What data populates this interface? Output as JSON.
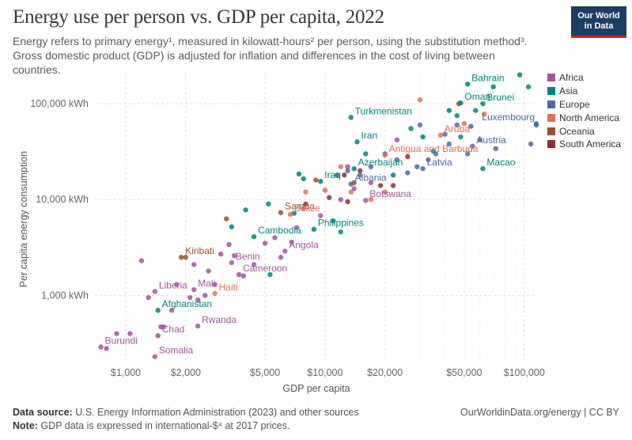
{
  "header": {
    "title": "Energy use per person vs. GDP per capita, 2022",
    "subtitle": "Energy refers to primary energy¹, measured in kilowatt-hours² per person, using the substitution method³. Gross domestic product (GDP) is adjusted for inflation and differences in the cost of living between countries.",
    "logo_line1": "Our World",
    "logo_line2": "in Data"
  },
  "footer": {
    "source_label": "Data source:",
    "source_text": "U.S. Energy Information Administration (2023) and other sources",
    "note_label": "Note:",
    "note_text": "GDP data is expressed in international-$⁴ at 2017 prices.",
    "credit": "OurWorldinData.org/energy | CC BY"
  },
  "colors": {
    "Africa": "#a2559c",
    "Asia": "#00847e",
    "Europe": "#4c6a9c",
    "North America": "#e56e5a",
    "Oceania": "#9a5129",
    "South America": "#883039",
    "grid": "#dddddd",
    "axis": "#666666"
  },
  "chart_data": {
    "type": "scatter",
    "title": "Energy use per person vs. GDP per capita, 2022",
    "xlabel": "GDP per capita",
    "ylabel": "Per capita energy consumption",
    "x_scale": "log",
    "y_scale": "log",
    "xlim": [
      700,
      115000
    ],
    "ylim": [
      200,
      210000
    ],
    "x_ticks": [
      1000,
      2000,
      5000,
      10000,
      20000,
      50000,
      100000
    ],
    "x_tick_labels": [
      "$1,000",
      "$2,000",
      "$5,000",
      "$10,000",
      "$20,000",
      "$50,000",
      "$100,000"
    ],
    "y_ticks": [
      1000,
      10000,
      100000
    ],
    "y_tick_labels": [
      "1,000 kWh",
      "10,000 kWh",
      "100,000 kWh"
    ],
    "grid": true,
    "legend_position": "right",
    "regions": [
      "Africa",
      "Asia",
      "Europe",
      "North America",
      "Oceania",
      "South America"
    ],
    "labeled_points": [
      {
        "label": "Bahrain",
        "region": "Asia",
        "x": 52000,
        "y": 160000
      },
      {
        "label": "Oman",
        "region": "Asia",
        "x": 48000,
        "y": 102000
      },
      {
        "label": "Brunei",
        "region": "Asia",
        "x": 62000,
        "y": 100000
      },
      {
        "label": "Turkmenistan",
        "region": "Asia",
        "x": 13500,
        "y": 72000
      },
      {
        "label": "Luxembourg",
        "region": "Europe",
        "x": 115000,
        "y": 62000
      },
      {
        "label": "Iran",
        "region": "Asia",
        "x": 14500,
        "y": 40000
      },
      {
        "label": "Aruba",
        "region": "North America",
        "x": 38000,
        "y": 47000
      },
      {
        "label": "Austria",
        "region": "Europe",
        "x": 55000,
        "y": 36000
      },
      {
        "label": "Antigua and Barbuda",
        "region": "North America",
        "x": 20000,
        "y": 29000
      },
      {
        "label": "Azerbaijan",
        "region": "Asia",
        "x": 14000,
        "y": 21000
      },
      {
        "label": "Latvia",
        "region": "Europe",
        "x": 31000,
        "y": 21000
      },
      {
        "label": "Macao",
        "region": "Asia",
        "x": 62000,
        "y": 21000
      },
      {
        "label": "Iraq",
        "region": "Asia",
        "x": 9500,
        "y": 15500
      },
      {
        "label": "Albania",
        "region": "Europe",
        "x": 13500,
        "y": 14500
      },
      {
        "label": "Botswana",
        "region": "Africa",
        "x": 16000,
        "y": 9800
      },
      {
        "label": "Samoa",
        "region": "Oceania",
        "x": 6000,
        "y": 7300
      },
      {
        "label": "Belize",
        "region": "North America",
        "x": 6700,
        "y": 7000
      },
      {
        "label": "Philippines",
        "region": "Asia",
        "x": 8800,
        "y": 4900
      },
      {
        "label": "Cambodia",
        "region": "Asia",
        "x": 4400,
        "y": 4100
      },
      {
        "label": "Angola",
        "region": "Africa",
        "x": 6300,
        "y": 2900
      },
      {
        "label": "Kiribati",
        "region": "Oceania",
        "x": 1900,
        "y": 2500
      },
      {
        "label": "Benin",
        "region": "Africa",
        "x": 3400,
        "y": 2200
      },
      {
        "label": "Cameroon",
        "region": "Africa",
        "x": 3700,
        "y": 1650
      },
      {
        "label": "Liberia",
        "region": "Africa",
        "x": 1400,
        "y": 1100
      },
      {
        "label": "Mali",
        "region": "Africa",
        "x": 2200,
        "y": 1150
      },
      {
        "label": "Haiti",
        "region": "North America",
        "x": 2800,
        "y": 1050
      },
      {
        "label": "Afghanistan",
        "region": "Asia",
        "x": 1450,
        "y": 700
      },
      {
        "label": "Rwanda",
        "region": "Africa",
        "x": 2300,
        "y": 480
      },
      {
        "label": "Chad",
        "region": "Africa",
        "x": 1450,
        "y": 380
      },
      {
        "label": "Burundi",
        "region": "Africa",
        "x": 750,
        "y": 290
      },
      {
        "label": "Somalia",
        "region": "Africa",
        "x": 1400,
        "y": 230
      }
    ],
    "points": [
      {
        "region": "Asia",
        "x": 95000,
        "y": 200000
      },
      {
        "region": "Asia",
        "x": 70000,
        "y": 150000
      },
      {
        "region": "Asia",
        "x": 105000,
        "y": 150000
      },
      {
        "region": "Asia",
        "x": 57000,
        "y": 85000
      },
      {
        "region": "Asia",
        "x": 46000,
        "y": 75000
      },
      {
        "region": "Asia",
        "x": 115000,
        "y": 60000
      },
      {
        "region": "Asia",
        "x": 27000,
        "y": 55000
      },
      {
        "region": "Asia",
        "x": 35000,
        "y": 32000
      },
      {
        "region": "Asia",
        "x": 7400,
        "y": 18500
      },
      {
        "region": "Asia",
        "x": 7800,
        "y": 16500
      },
      {
        "region": "Asia",
        "x": 5200,
        "y": 9000
      },
      {
        "region": "Asia",
        "x": 7000,
        "y": 7200
      },
      {
        "region": "Asia",
        "x": 11000,
        "y": 6000
      },
      {
        "region": "Asia",
        "x": 12000,
        "y": 4600
      },
      {
        "region": "Asia",
        "x": 5300,
        "y": 1650
      },
      {
        "region": "Asia",
        "x": 4000,
        "y": 7800
      },
      {
        "region": "Asia",
        "x": 3400,
        "y": 5200
      },
      {
        "region": "Asia",
        "x": 48000,
        "y": 45000
      },
      {
        "region": "Asia",
        "x": 22000,
        "y": 18000
      },
      {
        "region": "Asia",
        "x": 16000,
        "y": 30000
      },
      {
        "region": "Asia",
        "x": 31000,
        "y": 45000
      },
      {
        "region": "Asia",
        "x": 42000,
        "y": 85000
      },
      {
        "region": "Europe",
        "x": 108000,
        "y": 38000
      },
      {
        "region": "Europe",
        "x": 72000,
        "y": 34000
      },
      {
        "region": "Europe",
        "x": 60000,
        "y": 42000
      },
      {
        "region": "Europe",
        "x": 54000,
        "y": 58000
      },
      {
        "region": "Europe",
        "x": 46000,
        "y": 60000
      },
      {
        "region": "Europe",
        "x": 42000,
        "y": 38000
      },
      {
        "region": "Europe",
        "x": 36000,
        "y": 30000
      },
      {
        "region": "Europe",
        "x": 33000,
        "y": 26000
      },
      {
        "region": "Europe",
        "x": 29000,
        "y": 22000
      },
      {
        "region": "Europe",
        "x": 26000,
        "y": 19000
      },
      {
        "region": "Europe",
        "x": 23000,
        "y": 26000
      },
      {
        "region": "Europe",
        "x": 20000,
        "y": 30000
      },
      {
        "region": "Europe",
        "x": 17000,
        "y": 22000
      },
      {
        "region": "Europe",
        "x": 15000,
        "y": 18000
      },
      {
        "region": "Europe",
        "x": 13000,
        "y": 20000
      },
      {
        "region": "Europe",
        "x": 11500,
        "y": 18000
      },
      {
        "region": "Europe",
        "x": 30000,
        "y": 60000
      },
      {
        "region": "Europe",
        "x": 40000,
        "y": 48000
      },
      {
        "region": "Europe",
        "x": 52000,
        "y": 30000
      },
      {
        "region": "North America",
        "x": 30000,
        "y": 110000
      },
      {
        "region": "North America",
        "x": 63000,
        "y": 78000
      },
      {
        "region": "North America",
        "x": 50000,
        "y": 62000
      },
      {
        "region": "North America",
        "x": 12000,
        "y": 22000
      },
      {
        "region": "North America",
        "x": 10000,
        "y": 12500
      },
      {
        "region": "North America",
        "x": 13500,
        "y": 12000
      },
      {
        "region": "North America",
        "x": 17000,
        "y": 10000
      },
      {
        "region": "North America",
        "x": 20000,
        "y": 12000
      },
      {
        "region": "North America",
        "x": 8000,
        "y": 12000
      },
      {
        "region": "North America",
        "x": 7800,
        "y": 8000
      },
      {
        "region": "Oceania",
        "x": 2000,
        "y": 2500
      },
      {
        "region": "Oceania",
        "x": 3200,
        "y": 6300
      },
      {
        "region": "Oceania",
        "x": 9000,
        "y": 16000
      },
      {
        "region": "Oceania",
        "x": 14000,
        "y": 15000
      },
      {
        "region": "Oceania",
        "x": 47000,
        "y": 100000
      },
      {
        "region": "South America",
        "x": 26000,
        "y": 28000
      },
      {
        "region": "South America",
        "x": 22000,
        "y": 14000
      },
      {
        "region": "South America",
        "x": 19000,
        "y": 14000
      },
      {
        "region": "South America",
        "x": 15000,
        "y": 20000
      },
      {
        "region": "South America",
        "x": 12500,
        "y": 18000
      },
      {
        "region": "South America",
        "x": 10500,
        "y": 10500
      },
      {
        "region": "South America",
        "x": 8000,
        "y": 9000
      },
      {
        "region": "South America",
        "x": 13000,
        "y": 9500
      },
      {
        "region": "Africa",
        "x": 1200,
        "y": 2300
      },
      {
        "region": "Africa",
        "x": 900,
        "y": 400
      },
      {
        "region": "Africa",
        "x": 800,
        "y": 280
      },
      {
        "region": "Africa",
        "x": 1050,
        "y": 400
      },
      {
        "region": "Africa",
        "x": 1550,
        "y": 470
      },
      {
        "region": "Africa",
        "x": 1700,
        "y": 700
      },
      {
        "region": "Africa",
        "x": 1800,
        "y": 1300
      },
      {
        "region": "Africa",
        "x": 2100,
        "y": 950
      },
      {
        "region": "Africa",
        "x": 2300,
        "y": 900
      },
      {
        "region": "Africa",
        "x": 2500,
        "y": 1000
      },
      {
        "region": "Africa",
        "x": 2200,
        "y": 2100
      },
      {
        "region": "Africa",
        "x": 2800,
        "y": 1300
      },
      {
        "region": "Africa",
        "x": 3000,
        "y": 2700
      },
      {
        "region": "Africa",
        "x": 3300,
        "y": 3400
      },
      {
        "region": "Africa",
        "x": 3500,
        "y": 2600
      },
      {
        "region": "Africa",
        "x": 3900,
        "y": 1600
      },
      {
        "region": "Africa",
        "x": 4400,
        "y": 2100
      },
      {
        "region": "Africa",
        "x": 5000,
        "y": 3500
      },
      {
        "region": "Africa",
        "x": 5600,
        "y": 4000
      },
      {
        "region": "Africa",
        "x": 6000,
        "y": 2500
      },
      {
        "region": "Africa",
        "x": 6800,
        "y": 3600
      },
      {
        "region": "Africa",
        "x": 7200,
        "y": 5100
      },
      {
        "region": "Africa",
        "x": 9500,
        "y": 6800
      },
      {
        "region": "Africa",
        "x": 12000,
        "y": 10000
      },
      {
        "region": "Africa",
        "x": 14000,
        "y": 13000
      },
      {
        "region": "Africa",
        "x": 17000,
        "y": 15000
      },
      {
        "region": "Africa",
        "x": 23000,
        "y": 42000
      },
      {
        "region": "Africa",
        "x": 13000,
        "y": 22000
      },
      {
        "region": "Africa",
        "x": 1500,
        "y": 470
      },
      {
        "region": "Africa",
        "x": 1300,
        "y": 950
      },
      {
        "region": "Africa",
        "x": 2600,
        "y": 1800
      }
    ]
  }
}
